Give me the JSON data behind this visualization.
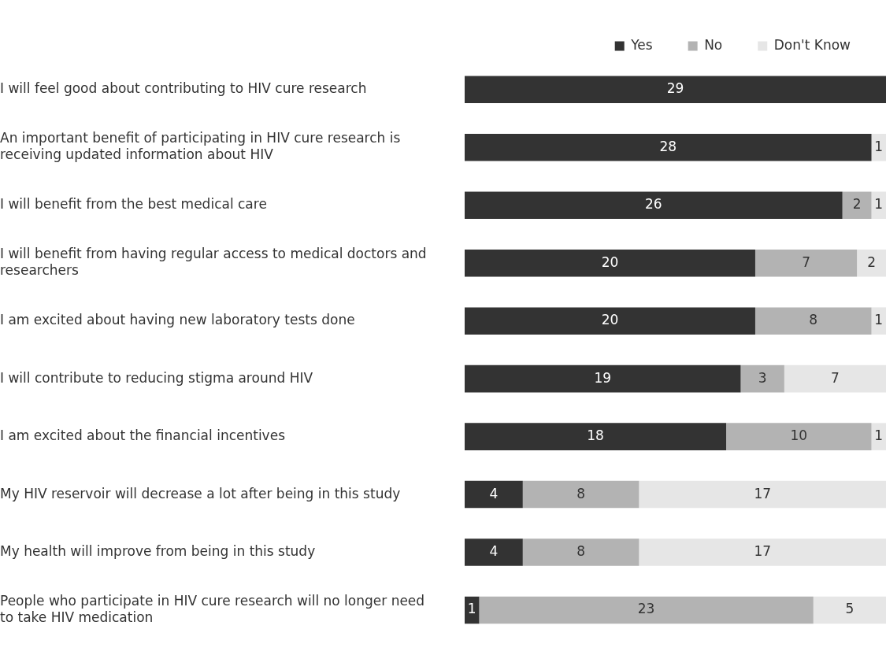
{
  "chart_data": {
    "type": "bar",
    "orientation": "horizontal",
    "stacked": true,
    "data_labels": true,
    "legend": "top right",
    "tick_labels": "y",
    "categories": [
      "I will feel good about contributing to HIV cure research",
      "An important benefit of participating in HIV cure research is receiving updated information about HIV",
      "I will benefit from the best medical care",
      "I will benefit from having regular access to medical doctors and researchers",
      "I am excited about having new laboratory tests done",
      "I will contribute to reducing stigma around HIV",
      "I am excited about the financial incentives",
      "My HIV reservoir will decrease a lot after being in this study",
      "My health will improve from being in this study",
      "People who participate in HIV cure research will no longer need to take HIV medication"
    ],
    "series": [
      {
        "name": "Yes",
        "color": "#333333",
        "values": [
          29,
          28,
          26,
          20,
          20,
          19,
          18,
          4,
          4,
          1
        ]
      },
      {
        "name": "No",
        "color": "#b3b3b3",
        "values": [
          null,
          null,
          2,
          7,
          8,
          3,
          10,
          8,
          8,
          23
        ]
      },
      {
        "name": "Don't Know",
        "color": "#e6e6e6",
        "values": [
          null,
          1,
          1,
          2,
          1,
          7,
          1,
          17,
          17,
          5
        ]
      }
    ]
  }
}
